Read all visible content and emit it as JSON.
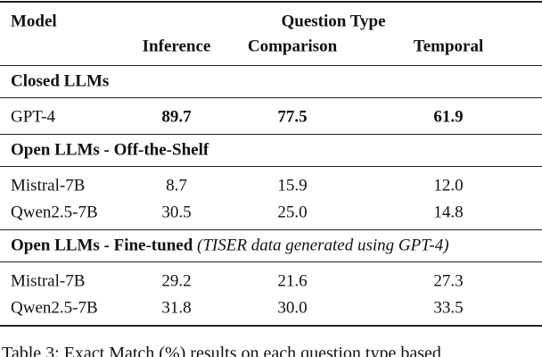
{
  "header": {
    "model": "Model",
    "group": "Question Type",
    "columns": [
      "Inference",
      "Comparison",
      "Temporal"
    ]
  },
  "sections": [
    {
      "title": "Closed LLMs",
      "bold_values": true,
      "rows": [
        {
          "model": "GPT-4",
          "values": [
            "89.7",
            "77.5",
            "61.9"
          ]
        }
      ]
    },
    {
      "title": "Open LLMs - Off-the-Shelf",
      "bold_values": false,
      "rows": [
        {
          "model": "Mistral-7B",
          "values": [
            "8.7",
            "15.9",
            "12.0"
          ]
        },
        {
          "model": "Qwen2.5-7B",
          "values": [
            "30.5",
            "25.0",
            "14.8"
          ]
        }
      ]
    },
    {
      "title": "Open LLMs - Fine-tuned",
      "note": "(TISER data generated using GPT-4)",
      "bold_values": false,
      "rows": [
        {
          "model": "Mistral-7B",
          "values": [
            "29.2",
            "21.6",
            "27.3"
          ]
        },
        {
          "model": "Qwen2.5-7B",
          "values": [
            "31.8",
            "30.0",
            "33.5"
          ]
        }
      ]
    }
  ],
  "caption": "Table 3: Exact Match (%) results on each question type based"
}
